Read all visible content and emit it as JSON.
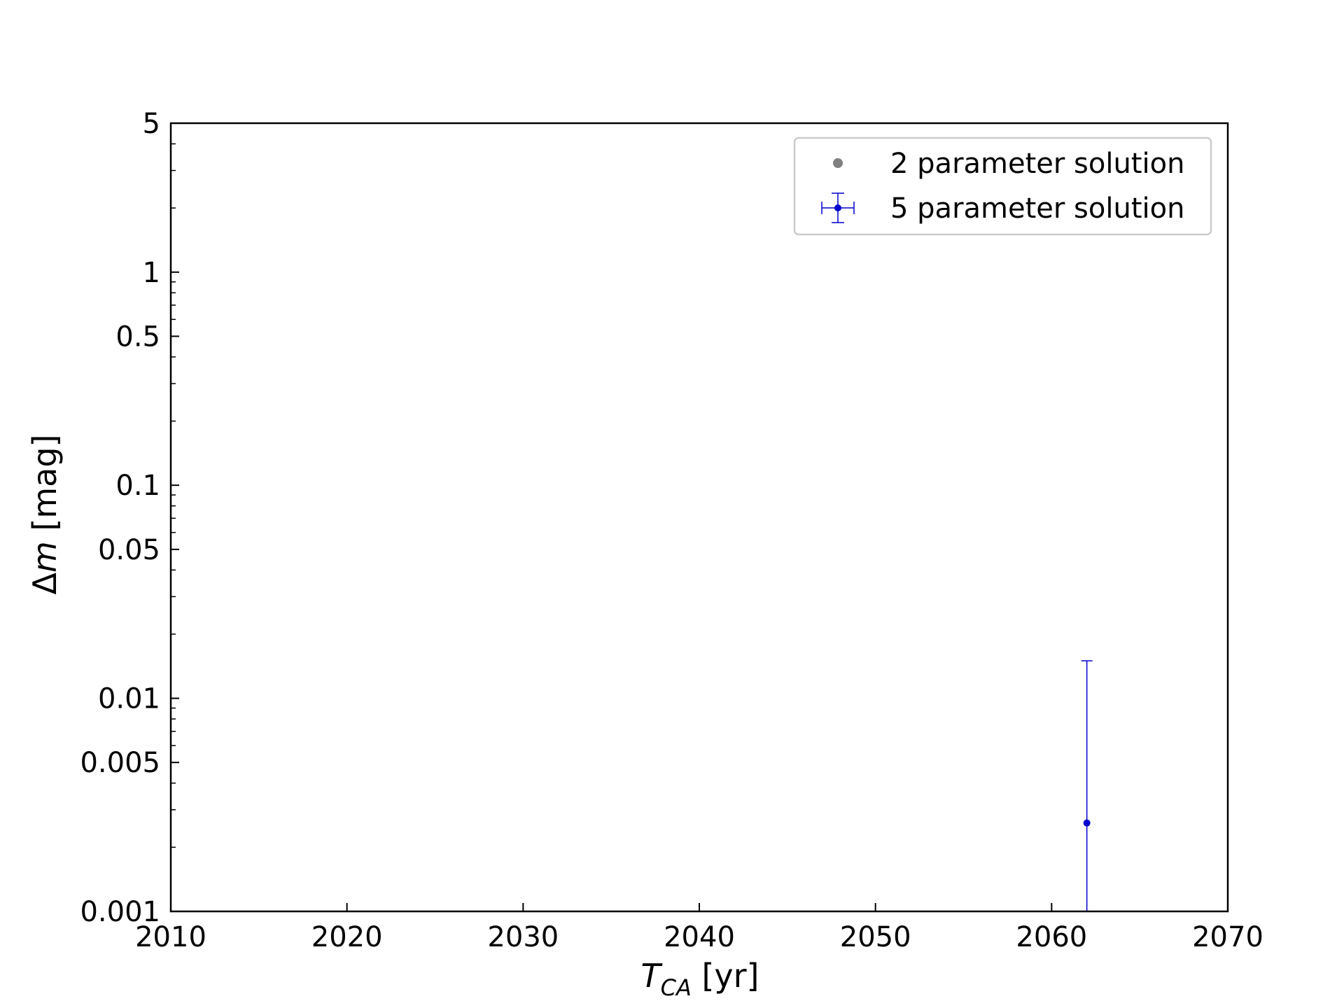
{
  "chart_data": {
    "type": "scatter",
    "title": "",
    "xlabel_main": "T",
    "xlabel_sub": "CA",
    "xlabel_unit": " [yr]",
    "ylabel_prefix": "Δ",
    "ylabel_var": "m",
    "ylabel_unit": " [mag]",
    "xlim": [
      2010,
      2070
    ],
    "ylim": [
      0.001,
      5
    ],
    "yscale": "log",
    "x_ticks": [
      {
        "value": 2010,
        "label": "2010"
      },
      {
        "value": 2020,
        "label": "2020"
      },
      {
        "value": 2030,
        "label": "2030"
      },
      {
        "value": 2040,
        "label": "2040"
      },
      {
        "value": 2050,
        "label": "2050"
      },
      {
        "value": 2060,
        "label": "2060"
      },
      {
        "value": 2070,
        "label": "2070"
      }
    ],
    "y_ticks": [
      {
        "value": 0.001,
        "label": "0.001"
      },
      {
        "value": 0.005,
        "label": "0.005"
      },
      {
        "value": 0.01,
        "label": "0.01"
      },
      {
        "value": 0.05,
        "label": "0.05"
      },
      {
        "value": 0.1,
        "label": "0.1"
      },
      {
        "value": 0.5,
        "label": "0.5"
      },
      {
        "value": 1,
        "label": "1"
      },
      {
        "value": 5,
        "label": "5"
      }
    ],
    "grid": false,
    "legend_position": "top-right",
    "series": [
      {
        "name": "2 parameter solution",
        "color": "#808080",
        "marker": "dot",
        "points": []
      },
      {
        "name": "5 parameter solution",
        "color": "#0000cc",
        "marker": "dot-errorbar",
        "points": [
          {
            "x": 2062,
            "y": 0.0026,
            "y_low": 0.001,
            "y_high": 0.015,
            "x_err": 0
          }
        ]
      }
    ]
  }
}
